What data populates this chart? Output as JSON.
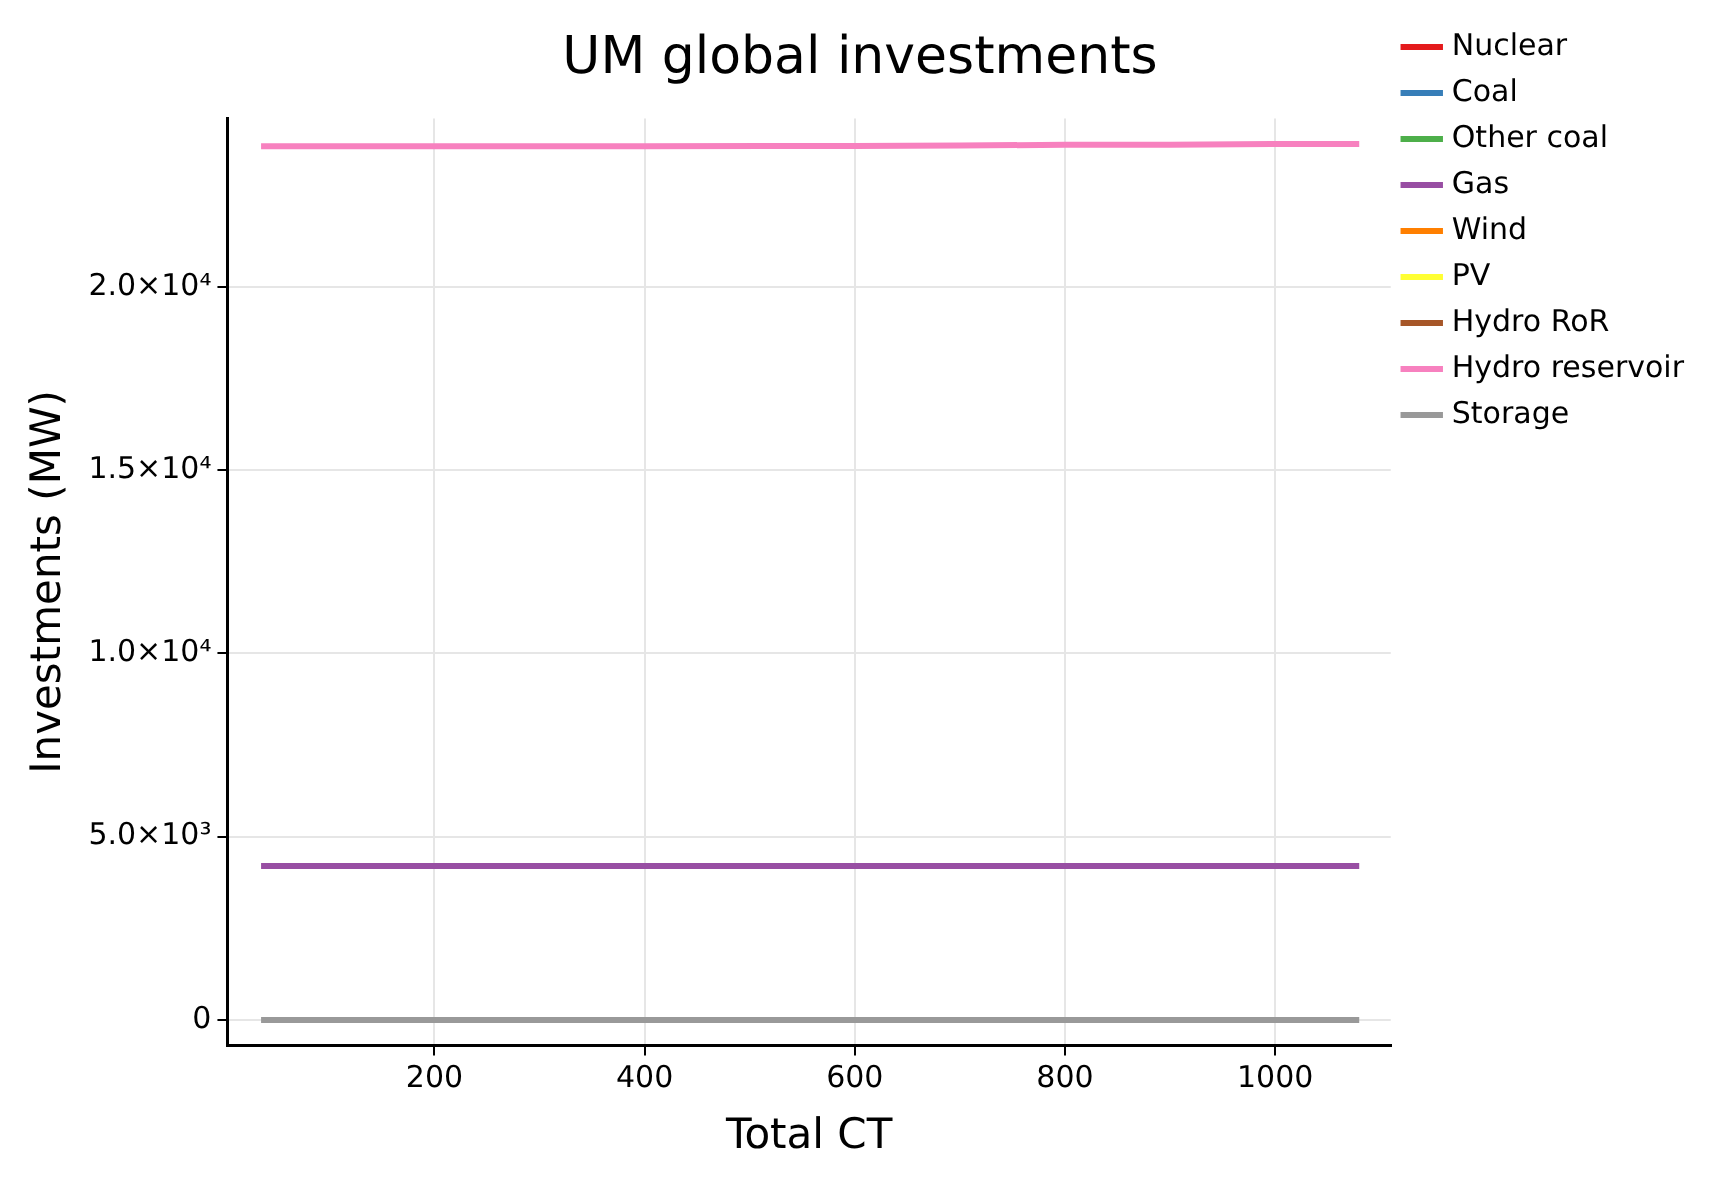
{
  "chart_data": {
    "type": "line",
    "title": "UM global investments",
    "xlabel": "Total CT",
    "ylabel": "Investments (MW)",
    "x": [
      35,
      200,
      400,
      600,
      700,
      800,
      900,
      1000,
      1080
    ],
    "series": [
      {
        "name": "Nuclear",
        "color": "#e41a1c",
        "values": [
          null,
          null,
          null,
          null,
          null,
          null,
          null,
          null,
          null
        ]
      },
      {
        "name": "Coal",
        "color": "#377eb8",
        "values": [
          null,
          null,
          null,
          null,
          null,
          null,
          null,
          null,
          null
        ]
      },
      {
        "name": "Other coal",
        "color": "#4daf4a",
        "values": [
          null,
          null,
          null,
          null,
          null,
          null,
          null,
          null,
          null
        ]
      },
      {
        "name": "Gas",
        "color": "#984ea3",
        "values": [
          4200,
          4200,
          4200,
          4200,
          4200,
          4200,
          4200,
          4200,
          4200
        ]
      },
      {
        "name": "Wind",
        "color": "#ff7f00",
        "values": [
          null,
          null,
          null,
          null,
          null,
          null,
          null,
          null,
          null
        ]
      },
      {
        "name": "PV",
        "color": "#ffff33",
        "values": [
          null,
          null,
          null,
          null,
          null,
          null,
          null,
          null,
          null
        ]
      },
      {
        "name": "Hydro RoR",
        "color": "#a65628",
        "values": [
          null,
          null,
          null,
          null,
          null,
          null,
          null,
          null,
          null
        ]
      },
      {
        "name": "Hydro reservoir",
        "color": "#f781bf",
        "values": [
          23840,
          23840,
          23840,
          23850,
          23860,
          23880,
          23880,
          23900,
          23900
        ]
      },
      {
        "name": "Storage",
        "color": "#999999",
        "values": [
          0,
          0,
          0,
          0,
          0,
          0,
          0,
          0,
          0
        ]
      }
    ],
    "xlim": [
      3,
      1110
    ],
    "xticks": [
      200,
      400,
      600,
      800,
      1000
    ],
    "ylim": [
      -700,
      24600
    ],
    "yticks": [
      0,
      {
        "value": 5000,
        "label": "5.0×10³"
      },
      {
        "value": 10000,
        "label": "1.0×10⁴"
      },
      {
        "value": 15000,
        "label": "1.5×10⁴"
      },
      {
        "value": 20000,
        "label": "2.0×10⁴"
      }
    ],
    "grid": true,
    "legend": "top right",
    "marker": "none",
    "line_style": "solid"
  }
}
